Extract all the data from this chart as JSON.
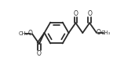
{
  "bg_color": "#ffffff",
  "line_color": "#2a2a2a",
  "line_width": 1.3,
  "figsize": [
    1.72,
    0.92
  ],
  "dpi": 100,
  "xlim": [
    0.0,
    1.72
  ],
  "ylim": [
    0.0,
    0.92
  ]
}
